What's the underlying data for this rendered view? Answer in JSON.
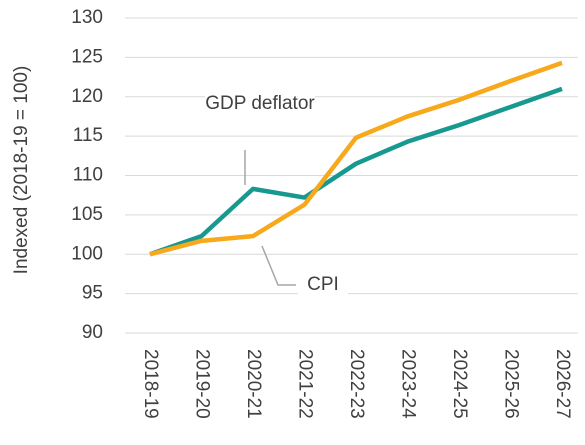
{
  "chart_data": {
    "type": "line",
    "y_label": "Indexed (2018-19 = 100)",
    "categories": [
      "2018-19",
      "2019-20",
      "2020-21",
      "2021-22",
      "2022-23",
      "2023-24",
      "2024-25",
      "2025-26",
      "2026-27"
    ],
    "series": [
      {
        "name": "GDP deflator",
        "color": "#17998f",
        "values": [
          100,
          102.3,
          108.3,
          107.2,
          111.5,
          114.3,
          116.4,
          118.7,
          121.0
        ]
      },
      {
        "name": "CPI",
        "color": "#f7a81b",
        "values": [
          100,
          101.7,
          102.3,
          106.3,
          114.8,
          117.5,
          119.6,
          122.0,
          124.3
        ]
      }
    ],
    "ylim": [
      90,
      130
    ],
    "yticks": [
      90,
      95,
      100,
      105,
      110,
      115,
      120,
      125,
      130
    ],
    "grid": true
  }
}
